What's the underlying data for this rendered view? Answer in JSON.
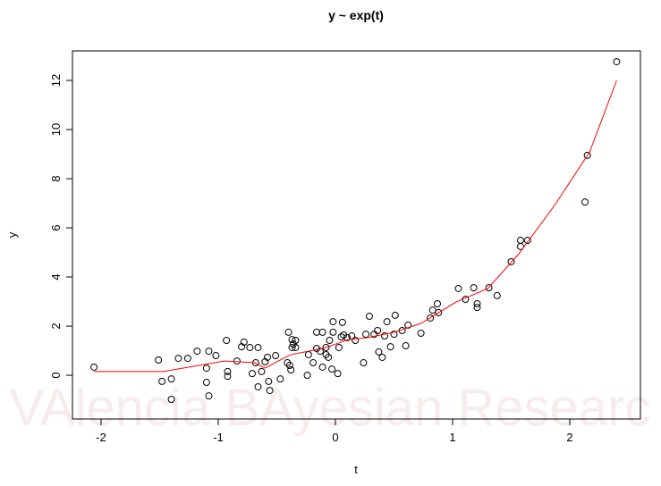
{
  "chart_data": {
    "type": "scatter",
    "title": "y ~ exp(t)",
    "xlabel": "t",
    "ylabel": "y",
    "watermark": "VAlencia BAyesian Researc",
    "xlim": [
      -2.244,
      2.603
    ],
    "ylim": [
      -1.78,
      13.2
    ],
    "xticks": [
      -2,
      -1,
      0,
      1,
      2
    ],
    "yticks": [
      0,
      2,
      4,
      6,
      8,
      10,
      12
    ],
    "point_color": "#000000",
    "x": [
      -2.06,
      -1.51,
      -1.48,
      -1.4,
      -1.4,
      -1.34,
      -1.26,
      -1.18,
      -1.1,
      -1.1,
      -1.08,
      -1.08,
      -1.02,
      -0.93,
      -0.92,
      -0.92,
      -0.84,
      -0.8,
      -0.78,
      -0.73,
      -0.71,
      -0.68,
      -0.66,
      -0.66,
      -0.63,
      -0.6,
      -0.58,
      -0.57,
      -0.56,
      -0.51,
      -0.47,
      -0.41,
      -0.4,
      -0.39,
      -0.38,
      -0.37,
      -0.37,
      -0.36,
      -0.34,
      -0.34,
      -0.24,
      -0.23,
      -0.19,
      -0.16,
      -0.16,
      -0.13,
      -0.11,
      -0.11,
      -0.08,
      -0.08,
      -0.06,
      -0.05,
      -0.03,
      -0.02,
      -0.02,
      0.02,
      0.03,
      0.05,
      0.06,
      0.07,
      0.1,
      0.14,
      0.17,
      0.24,
      0.26,
      0.29,
      0.33,
      0.36,
      0.37,
      0.4,
      0.42,
      0.44,
      0.47,
      0.5,
      0.51,
      0.57,
      0.6,
      0.62,
      0.73,
      0.81,
      0.83,
      0.87,
      0.88,
      1.05,
      1.11,
      1.18,
      1.21,
      1.21,
      1.31,
      1.38,
      1.5,
      1.58,
      1.58,
      1.64,
      2.13,
      2.15,
      2.4
    ],
    "y": [
      0.33,
      0.62,
      -0.25,
      -0.15,
      -0.98,
      0.69,
      0.69,
      0.98,
      0.29,
      -0.29,
      0.98,
      -0.84,
      0.8,
      1.42,
      0.15,
      -0.04,
      0.58,
      1.16,
      1.35,
      1.13,
      0.07,
      0.51,
      1.13,
      -0.47,
      0.15,
      0.55,
      0.73,
      -0.25,
      -0.62,
      0.8,
      -0.15,
      0.51,
      1.75,
      0.4,
      0.22,
      1.45,
      1.13,
      1.27,
      1.42,
      1.13,
      0,
      0.84,
      0.51,
      1.75,
      1.09,
      0.98,
      1.75,
      0.33,
      0.84,
      1.13,
      0.73,
      1.42,
      0.25,
      2.18,
      1.75,
      0.07,
      1.13,
      1.56,
      2.15,
      1.64,
      1.53,
      1.6,
      1.42,
      0.51,
      1.67,
      2.4,
      1.67,
      1.82,
      0.95,
      0.73,
      1.6,
      2.18,
      1.16,
      1.67,
      2.44,
      1.82,
      1.2,
      2.04,
      1.71,
      2.33,
      2.65,
      2.91,
      2.55,
      3.53,
      3.09,
      3.56,
      2.91,
      2.76,
      3.56,
      3.24,
      4.62,
      5.24,
      5.49,
      5.49,
      7.05,
      8.95,
      12.76
    ],
    "line": {
      "color": "#ff0000",
      "x": [
        -2.06,
        -1.47,
        -0.95,
        -0.69,
        -0.6,
        -0.5,
        -0.38,
        -0.23,
        -0.08,
        0.11,
        0.27,
        0.5,
        0.73,
        1.03,
        1.3,
        1.56,
        1.87,
        2.17,
        2.4
      ],
      "y": [
        0.15,
        0.15,
        0.58,
        0.51,
        0.29,
        0.55,
        0.84,
        0.98,
        1.13,
        1.45,
        1.53,
        1.75,
        2.11,
        2.98,
        3.53,
        4.91,
        6.91,
        9.09,
        12.0
      ]
    }
  }
}
